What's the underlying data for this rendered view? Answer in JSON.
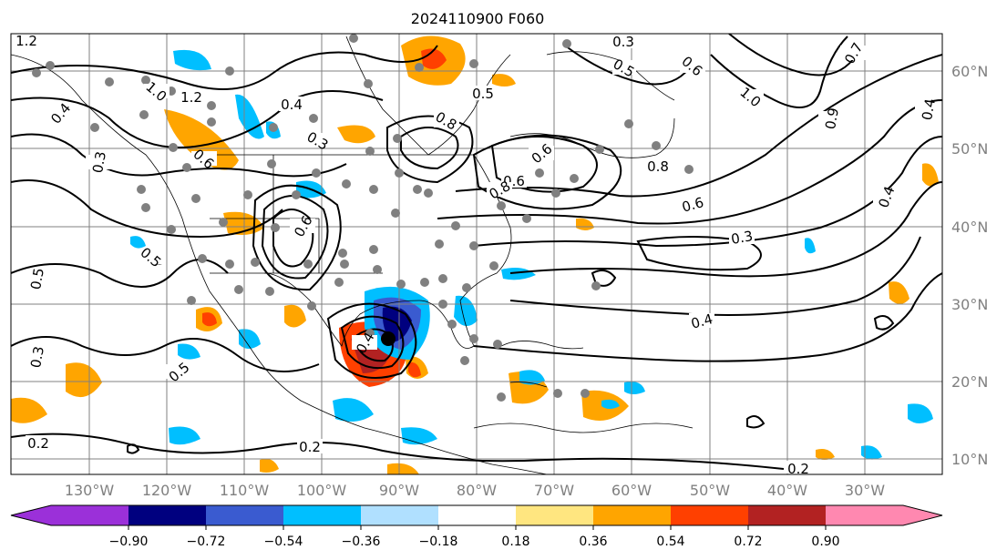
{
  "title": "2024110900 F060",
  "map": {
    "lat_labels": [
      "60°N",
      "50°N",
      "40°N",
      "30°N",
      "20°N",
      "10°N"
    ],
    "lon_labels": [
      "130°W",
      "120°W",
      "110°W",
      "100°W",
      "90°W",
      "80°W",
      "70°W",
      "60°W",
      "50°W",
      "40°W",
      "30°W"
    ],
    "contour_labels": [
      "1.2",
      "0.3",
      "0.5",
      "1.0",
      "1.2",
      "0.4",
      "0.6",
      "0.3",
      "0.4",
      "0.5",
      "0.8",
      "0.3",
      "0.6",
      "1.0",
      "0.6",
      "0.2",
      "0.6",
      "0.5",
      "0.4",
      "0.6",
      "0.3",
      "0.4",
      "0.3",
      "0.2",
      "0.2",
      "0.4",
      "0.6",
      "0.7",
      "0.9",
      "0.8",
      "0.8",
      "0.5",
      "0.4",
      "0.5"
    ],
    "colors": {
      "contour": "#000000",
      "grid": "#808080",
      "coast": "#000000",
      "station_dots": "#808080"
    }
  },
  "colorbar": {
    "tick_labels": [
      "−0.90",
      "−0.72",
      "−0.54",
      "−0.36",
      "−0.18",
      "0.18",
      "0.36",
      "0.54",
      "0.72",
      "0.90"
    ],
    "colors": [
      "#9b30d9",
      "#00007f",
      "#3a5bd0",
      "#00bfff",
      "#b0e0ff",
      "#ffffff",
      "#ffe680",
      "#ffa500",
      "#ff4000",
      "#b22222",
      "#ff88b0"
    ]
  }
}
